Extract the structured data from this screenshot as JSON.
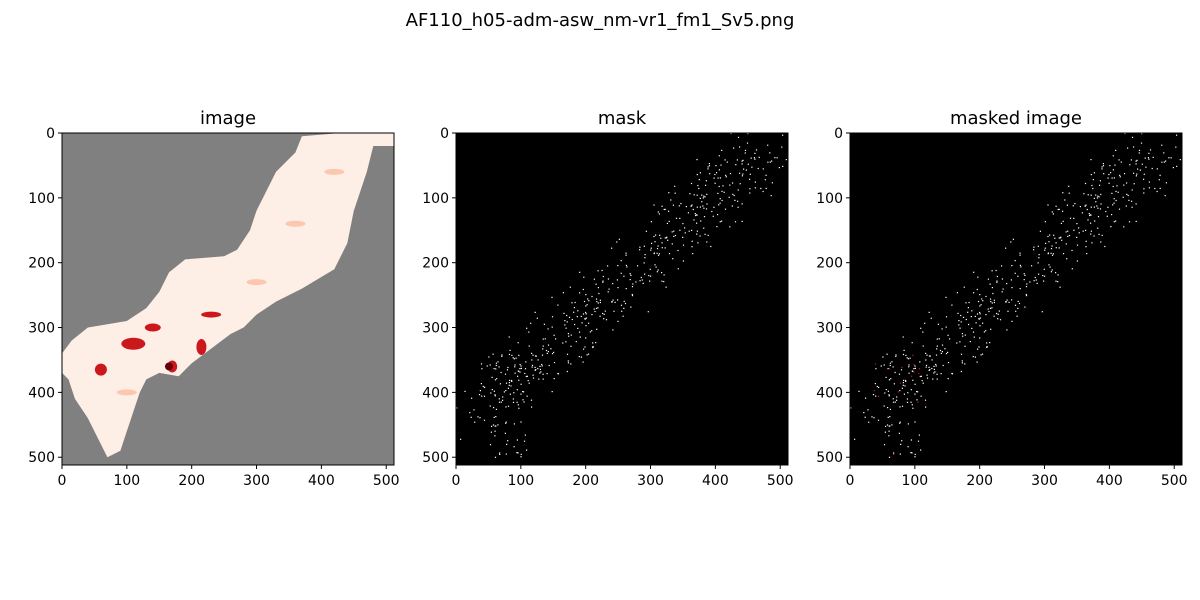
{
  "figure": {
    "title": "AF110_h05-adm-asw_nm-vr1_fm1_Sv5.png"
  },
  "colors": {
    "background": "#ffffff",
    "no_data_gray": "#808080",
    "land_light": "#fdeee6",
    "land_mid": "#fcbba1",
    "hot_red": "#cb181d",
    "dark_red": "#67000d",
    "mask_black": "#000000",
    "mask_point": "#ffffff"
  },
  "chart_data": [
    {
      "type": "heatmap",
      "title": "image",
      "colormap": "Reds",
      "nodata_color": "gray",
      "xlim": [
        0,
        512
      ],
      "ylim": [
        512,
        0
      ],
      "xticks": [
        0,
        100,
        200,
        300,
        400,
        500
      ],
      "yticks": [
        0,
        100,
        200,
        300,
        400,
        500
      ],
      "grid": false
    },
    {
      "type": "heatmap",
      "title": "mask",
      "colormap": "binary (black background, white sample points)",
      "xlim": [
        0,
        512
      ],
      "ylim": [
        512,
        0
      ],
      "xticks": [
        0,
        100,
        200,
        300,
        400,
        500
      ],
      "yticks": [
        0,
        100,
        200,
        300,
        400,
        500
      ],
      "grid": false
    },
    {
      "type": "heatmap",
      "title": "masked image",
      "colormap": "Reds values at mask points on black",
      "xlim": [
        0,
        512
      ],
      "ylim": [
        512,
        0
      ],
      "xticks": [
        0,
        100,
        200,
        300,
        400,
        500
      ],
      "yticks": [
        0,
        100,
        200,
        300,
        400,
        500
      ],
      "grid": false
    }
  ]
}
